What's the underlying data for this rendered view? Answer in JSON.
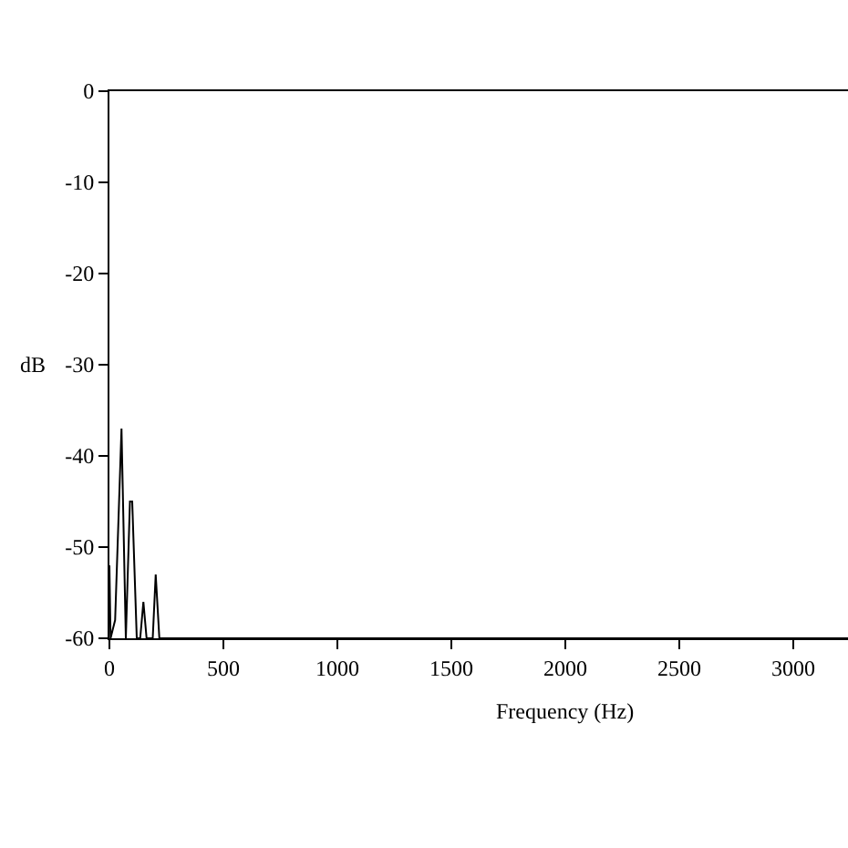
{
  "chart_data": {
    "type": "line",
    "xlabel": "Frequency (Hz)",
    "ylabel": "dB",
    "x": [
      0,
      5,
      15,
      25,
      53,
      72,
      90,
      100,
      120,
      135,
      149,
      163,
      190,
      203,
      219,
      3240
    ],
    "values": [
      -52,
      -60,
      -59,
      -58,
      -37,
      -60,
      -45,
      -45,
      -60,
      -60,
      -56,
      -60,
      -60,
      -53,
      -60,
      -60
    ],
    "color": "#000000",
    "xlim": [
      0,
      3240
    ],
    "ylim": [
      -60,
      0
    ],
    "xticks": [
      0,
      500,
      1000,
      1500,
      2000,
      2500,
      3000
    ],
    "yticks": [
      0,
      -10,
      -20,
      -30,
      -40,
      -50,
      -60
    ],
    "grid": false
  }
}
